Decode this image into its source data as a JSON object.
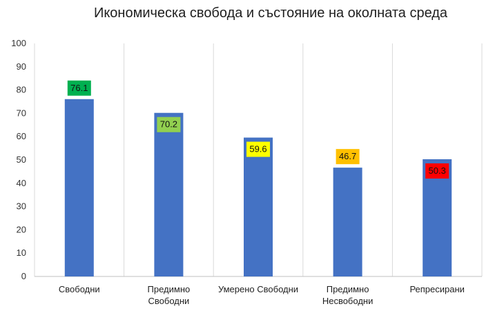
{
  "chart_data": {
    "type": "bar",
    "title": "Икономическа свобода и състояние на околната среда",
    "xlabel": "",
    "ylabel": "",
    "categories": [
      [
        "Свободни"
      ],
      [
        "Предимно",
        "Свободни"
      ],
      [
        "Умерено Свободни"
      ],
      [
        "Предимно",
        "Несвободни"
      ],
      [
        "Репресирани"
      ]
    ],
    "values": [
      76.1,
      70.2,
      59.6,
      46.7,
      50.3
    ],
    "data_labels": [
      "76.1",
      "70.2",
      "59.6",
      "46.7",
      "50.3"
    ],
    "data_label_colors": [
      "#00b050",
      "#92d050",
      "#ffff00",
      "#ffc000",
      "#ff0000"
    ],
    "bar_color": "#4472c4",
    "ylim": [
      0,
      100
    ],
    "yticks": [
      "0",
      "10",
      "20",
      "30",
      "40",
      "50",
      "60",
      "70",
      "80",
      "90",
      "100"
    ],
    "grid": "vertical-dividers",
    "legend": "none"
  }
}
